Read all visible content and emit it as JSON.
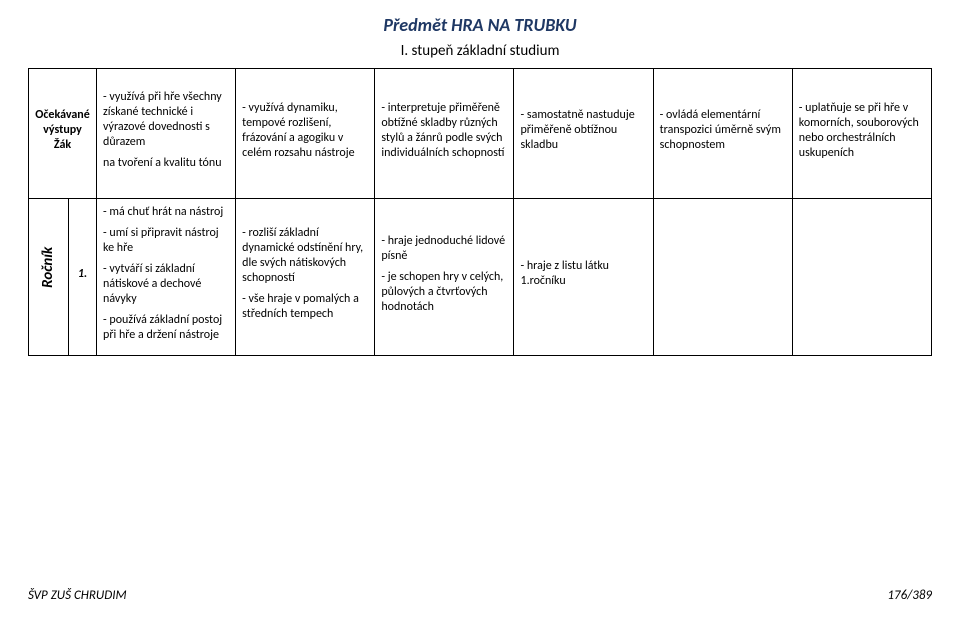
{
  "title": "Předmět HRA NA TRUBKU",
  "subtitle": "I. stupeň základní studium",
  "header": {
    "side_label": "Očekávané výstupy\nŽák",
    "cells": [
      "- využívá při hře všechny získané technické i výrazové dovednosti s důrazem\n\nna tvoření a kvalitu tónu",
      "- využívá dynamiku, tempové rozlišení, frázování a agogiku v celém rozsahu nástroje",
      "- interpretuje přiměřeně obtížné skladby různých stylů a žánrů podle svých individuálních schopností",
      "- samostatně nastuduje přiměřeně obtížnou skladbu",
      "- ovládá elementární transpozici úměrně svým schopnostem",
      "- uplatňuje se při hře v komorních, souborových nebo orchestrálních uskupeních"
    ]
  },
  "body": {
    "side_label": "Ročník",
    "number": "1.",
    "cells": [
      "- má chuť hrát na nástroj\n\n- umí si připravit nástroj ke hře\n\n- vytváří si základní nátiskové a dechové návyky\n\n- používá  základní postoj při hře a držení nástroje",
      "- rozliší základní dynamické odstínění hry, dle svých nátiskových schopností\n\n- vše hraje v pomalých a středních tempech",
      "- hraje jednoduché lidové písně\n\n- je schopen hry v celých, půlových a čtvrťových hodnotách",
      "- hraje z listu látku 1.ročníku",
      "",
      ""
    ]
  },
  "footer": {
    "left": "ŠVP ZUŠ CHRUDIM",
    "right": "176/389"
  },
  "colors": {
    "title": "#1f3864",
    "text": "#000000",
    "border": "#000000",
    "background": "#ffffff"
  },
  "fontsizes": {
    "title": 18,
    "subtitle": 15,
    "cell": 12,
    "footer": 13
  }
}
